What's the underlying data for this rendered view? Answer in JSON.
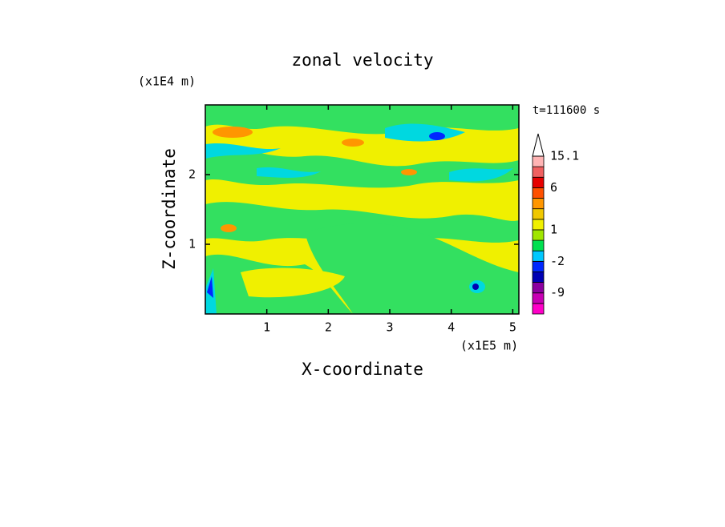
{
  "chart_data": {
    "type": "contour",
    "title": "zonal velocity",
    "x_label": "X-coordinate",
    "y_label": "Z-coordinate",
    "x_unit": "(x1E5 m)",
    "y_unit": "(x1E4 m)",
    "annotation": "t=111600 s",
    "xlim": [
      0,
      5.1
    ],
    "ylim": [
      0,
      3.0
    ],
    "xticks": [
      1,
      2,
      3,
      4,
      5
    ],
    "yticks": [
      1,
      2
    ],
    "colorbar": {
      "colors": [
        "#ff00c8",
        "#c800b4",
        "#8c00a0",
        "#0000b4",
        "#0028ff",
        "#00c8ff",
        "#00e050",
        "#a0e600",
        "#f0f000",
        "#f0c800",
        "#ff9600",
        "#ff5000",
        "#e60000",
        "#f06060",
        "#ffb4b4"
      ],
      "levels": [
        null,
        null,
        -9,
        null,
        null,
        -2,
        null,
        null,
        1,
        null,
        null,
        null,
        6,
        null,
        null,
        15.1
      ]
    }
  }
}
